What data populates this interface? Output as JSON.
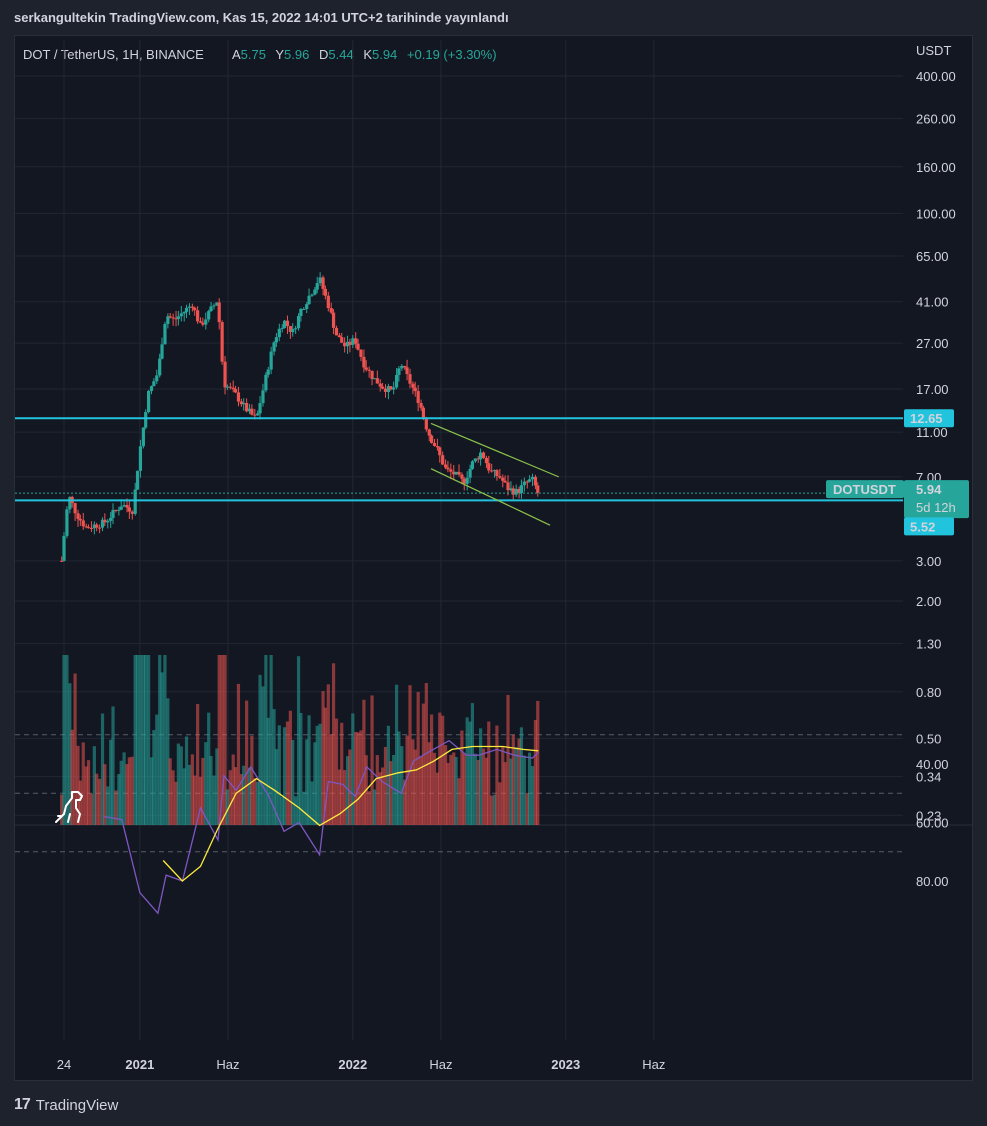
{
  "header": {
    "published": "serkangultekin TradingView.com, Kas 15, 2022 14:01 UTC+2 tarihinde yayınlandı"
  },
  "legend": {
    "symbol": "DOT / TetherUS, 1H, BINANCE",
    "o_label": "A",
    "o": "5.75",
    "h_label": "Y",
    "h": "5.96",
    "l_label": "D",
    "l": "5.44",
    "c_label": "K",
    "c": "5.94",
    "change": "+0.19 (+3.30%)"
  },
  "axis": {
    "currency": "USDT",
    "price_ticks": [
      "400.00",
      "260.00",
      "160.00",
      "100.00",
      "65.00",
      "41.00",
      "27.00",
      "17.00",
      "11.00",
      "7.00",
      "3.00",
      "2.00",
      "1.30",
      "0.80",
      "0.50",
      "0.34",
      "0.23"
    ],
    "rsi_ticks": [
      "80.00",
      "60.00",
      "40.00"
    ],
    "time_ticks": [
      "24",
      "2021",
      "Haz",
      "2022",
      "Haz",
      "2023",
      "Haz"
    ]
  },
  "labels": {
    "level_upper": "12.65",
    "level_lower": "5.52",
    "symbol_tag": "DOTUSDT",
    "last_price": "5.94",
    "countdown": "5d 12h"
  },
  "colors": {
    "up": "#26a69a",
    "down": "#ef5350",
    "level": "#22c3dc",
    "channel": "#8bc34a",
    "rsi": "#7e57c2",
    "rsi_ma": "#ffeb3b"
  },
  "footer": {
    "brand": "TradingView"
  },
  "chart_data": {
    "type": "candlestick",
    "symbol": "DOT / TetherUS",
    "scale": "log",
    "approx_close_path": [
      {
        "date": "2020-08-20",
        "close": 3.0
      },
      {
        "date": "2020-09-01",
        "close": 5.8
      },
      {
        "date": "2020-09-15",
        "close": 4.8
      },
      {
        "date": "2020-10-01",
        "close": 4.2
      },
      {
        "date": "2020-11-01",
        "close": 4.4
      },
      {
        "date": "2020-12-01",
        "close": 5.3
      },
      {
        "date": "2020-12-20",
        "close": 5.0
      },
      {
        "date": "2021-01-01",
        "close": 9.0
      },
      {
        "date": "2021-01-15",
        "close": 16.0
      },
      {
        "date": "2021-02-01",
        "close": 20.0
      },
      {
        "date": "2021-02-15",
        "close": 36.0
      },
      {
        "date": "2021-03-01",
        "close": 34.0
      },
      {
        "date": "2021-04-01",
        "close": 40.0
      },
      {
        "date": "2021-04-15",
        "close": 32.0
      },
      {
        "date": "2021-05-15",
        "close": 42.0
      },
      {
        "date": "2021-05-25",
        "close": 18.0
      },
      {
        "date": "2021-06-15",
        "close": 16.0
      },
      {
        "date": "2021-07-01",
        "close": 14.0
      },
      {
        "date": "2021-07-20",
        "close": 12.5
      },
      {
        "date": "2021-08-05",
        "close": 19.0
      },
      {
        "date": "2021-08-20",
        "close": 28.0
      },
      {
        "date": "2021-09-05",
        "close": 34.0
      },
      {
        "date": "2021-09-20",
        "close": 30.0
      },
      {
        "date": "2021-10-05",
        "close": 38.0
      },
      {
        "date": "2021-10-20",
        "close": 44.0
      },
      {
        "date": "2021-11-05",
        "close": 52.0
      },
      {
        "date": "2021-11-20",
        "close": 40.0
      },
      {
        "date": "2021-12-05",
        "close": 29.0
      },
      {
        "date": "2021-12-20",
        "close": 26.0
      },
      {
        "date": "2022-01-05",
        "close": 28.0
      },
      {
        "date": "2022-01-20",
        "close": 22.0
      },
      {
        "date": "2022-02-05",
        "close": 19.0
      },
      {
        "date": "2022-02-20",
        "close": 17.5
      },
      {
        "date": "2022-03-10",
        "close": 16.5
      },
      {
        "date": "2022-03-25",
        "close": 22.0
      },
      {
        "date": "2022-04-10",
        "close": 18.0
      },
      {
        "date": "2022-04-25",
        "close": 15.0
      },
      {
        "date": "2022-05-10",
        "close": 11.0
      },
      {
        "date": "2022-05-25",
        "close": 9.3
      },
      {
        "date": "2022-06-10",
        "close": 7.5
      },
      {
        "date": "2022-06-25",
        "close": 7.2
      },
      {
        "date": "2022-07-10",
        "close": 6.6
      },
      {
        "date": "2022-07-25",
        "close": 8.0
      },
      {
        "date": "2022-08-10",
        "close": 9.0
      },
      {
        "date": "2022-08-25",
        "close": 7.4
      },
      {
        "date": "2022-09-10",
        "close": 7.0
      },
      {
        "date": "2022-09-25",
        "close": 6.2
      },
      {
        "date": "2022-10-10",
        "close": 6.0
      },
      {
        "date": "2022-10-25",
        "close": 6.6
      },
      {
        "date": "2022-11-05",
        "close": 6.8
      },
      {
        "date": "2022-11-15",
        "close": 5.94
      }
    ],
    "horizontal_levels": [
      12.65,
      5.52
    ],
    "channel": {
      "upper": [
        {
          "date": "2022-05-15",
          "price": 12.0
        },
        {
          "date": "2022-12-20",
          "price": 7.0
        }
      ],
      "lower": [
        {
          "date": "2022-05-15",
          "price": 7.6
        },
        {
          "date": "2022-12-05",
          "price": 4.3
        }
      ]
    },
    "rsi": {
      "band": [
        30,
        70
      ],
      "line_points": [
        {
          "date": "2020-11-01",
          "value": 58
        },
        {
          "date": "2020-12-01",
          "value": 59
        },
        {
          "date": "2021-01-01",
          "value": 84
        },
        {
          "date": "2021-02-01",
          "value": 91
        },
        {
          "date": "2021-02-15",
          "value": 78
        },
        {
          "date": "2021-03-15",
          "value": 80
        },
        {
          "date": "2021-04-15",
          "value": 55
        },
        {
          "date": "2021-05-15",
          "value": 66
        },
        {
          "date": "2021-05-25",
          "value": 44
        },
        {
          "date": "2021-06-15",
          "value": 49
        },
        {
          "date": "2021-07-10",
          "value": 41
        },
        {
          "date": "2021-08-10",
          "value": 51
        },
        {
          "date": "2021-09-05",
          "value": 63
        },
        {
          "date": "2021-10-01",
          "value": 60
        },
        {
          "date": "2021-10-20",
          "value": 66
        },
        {
          "date": "2021-11-05",
          "value": 71
        },
        {
          "date": "2021-11-20",
          "value": 46
        },
        {
          "date": "2021-12-15",
          "value": 47
        },
        {
          "date": "2022-01-05",
          "value": 51
        },
        {
          "date": "2022-01-25",
          "value": 41
        },
        {
          "date": "2022-02-20",
          "value": 46
        },
        {
          "date": "2022-03-25",
          "value": 50
        },
        {
          "date": "2022-04-15",
          "value": 39
        },
        {
          "date": "2022-05-10",
          "value": 36
        },
        {
          "date": "2022-06-15",
          "value": 32
        },
        {
          "date": "2022-07-15",
          "value": 37
        },
        {
          "date": "2022-08-05",
          "value": 37
        },
        {
          "date": "2022-09-05",
          "value": 35
        },
        {
          "date": "2022-10-05",
          "value": 37
        },
        {
          "date": "2022-11-05",
          "value": 38
        },
        {
          "date": "2022-11-15",
          "value": 36
        }
      ],
      "ma_points": [
        {
          "date": "2021-02-10",
          "value": 73
        },
        {
          "date": "2021-03-15",
          "value": 80
        },
        {
          "date": "2021-04-15",
          "value": 75
        },
        {
          "date": "2021-05-15",
          "value": 62
        },
        {
          "date": "2021-06-15",
          "value": 50
        },
        {
          "date": "2021-07-20",
          "value": 45
        },
        {
          "date": "2021-08-20",
          "value": 49
        },
        {
          "date": "2021-10-01",
          "value": 55
        },
        {
          "date": "2021-11-05",
          "value": 61
        },
        {
          "date": "2021-12-10",
          "value": 57
        },
        {
          "date": "2022-01-10",
          "value": 52
        },
        {
          "date": "2022-02-10",
          "value": 45
        },
        {
          "date": "2022-03-20",
          "value": 43
        },
        {
          "date": "2022-04-20",
          "value": 42
        },
        {
          "date": "2022-05-20",
          "value": 39
        },
        {
          "date": "2022-06-20",
          "value": 35
        },
        {
          "date": "2022-07-25",
          "value": 34
        },
        {
          "date": "2022-09-15",
          "value": 34
        },
        {
          "date": "2022-10-20",
          "value": 35
        },
        {
          "date": "2022-11-15",
          "value": 35.5
        }
      ]
    }
  }
}
